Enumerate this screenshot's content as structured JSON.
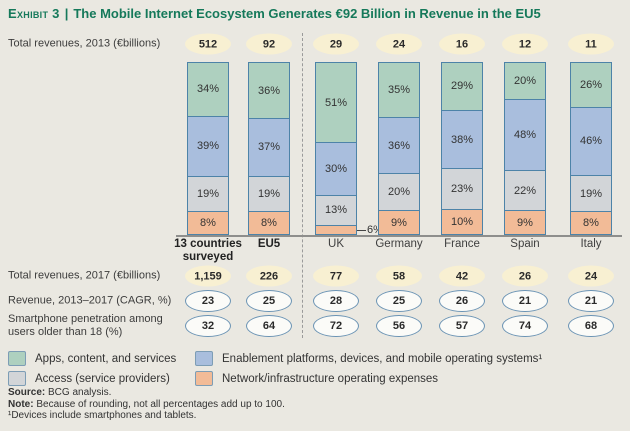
{
  "title": {
    "exhibit": "Exhibit 3",
    "separator": "|",
    "text": "The Mobile Internet Ecosystem Generates €92 Billion in Revenue in the EU5"
  },
  "row_labels": {
    "revenues_2013": "Total revenues, 2013 (€billions)",
    "revenues_2017": "Total revenues, 2017 (€billions)",
    "cagr": "Revenue, 2013–2017 (CAGR, %)",
    "penetration": "Smartphone penetration among\nusers older than 18 (%)"
  },
  "chart_data": {
    "type": "bar",
    "variant": "100-percent-stacked-columns",
    "unit": "%",
    "categories": [
      "13 countries\nsurveyed",
      "EU5",
      "UK",
      "Germany",
      "France",
      "Spain",
      "Italy"
    ],
    "series": [
      {
        "name": "Apps, content, and services",
        "color": "#aed0bf",
        "values": [
          34,
          36,
          51,
          35,
          29,
          20,
          26
        ]
      },
      {
        "name": "Enablement platforms, devices, and mobile operating systems¹",
        "color": "#a9bedd",
        "values": [
          39,
          37,
          30,
          36,
          38,
          48,
          46
        ]
      },
      {
        "name": "Access (service providers)",
        "color": "#d2d5d8",
        "values": [
          19,
          19,
          13,
          20,
          23,
          22,
          19
        ]
      },
      {
        "name": "Network/infrastructure operating expenses",
        "color": "#f2bb97",
        "values": [
          8,
          8,
          6,
          9,
          10,
          9,
          8
        ]
      }
    ],
    "total_revenues_2013_billions": [
      "512",
      "92",
      "29",
      "24",
      "16",
      "12",
      "11"
    ],
    "total_revenues_2017_billions": [
      "1,159",
      "226",
      "77",
      "58",
      "42",
      "26",
      "24"
    ],
    "revenue_cagr_2013_2017_pct": [
      "23",
      "25",
      "28",
      "25",
      "26",
      "21",
      "21"
    ],
    "smartphone_penetration_pct": [
      "32",
      "64",
      "72",
      "56",
      "57",
      "74",
      "68"
    ],
    "notes": "Percentages labeled inside segments; UK 6% labeled outside with leader line"
  },
  "legend": {
    "items": [
      {
        "label": "Apps, content, and services",
        "color": "#aed0bf"
      },
      {
        "label": "Enablement platforms, devices, and mobile operating systems¹",
        "color": "#a9bedd"
      },
      {
        "label": "Access (service providers)",
        "color": "#d2d5d8"
      },
      {
        "label": "Network/infrastructure operating expenses",
        "color": "#f2bb97"
      }
    ]
  },
  "footer": {
    "source_label": "Source:",
    "source_text": "BCG analysis.",
    "note_label": "Note:",
    "note_text": "Because of rounding, not all percentages add up to 100.",
    "footnote": "¹Devices include smartphones and tablets."
  }
}
